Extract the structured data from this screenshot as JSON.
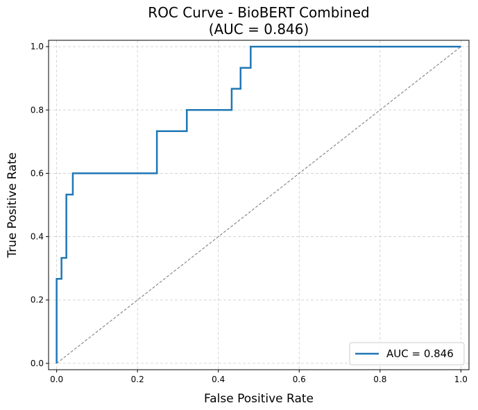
{
  "chart_data": {
    "type": "line",
    "title_line1": "ROC Curve - BioBERT Combined",
    "title_line2": "(AUC = 0.846)",
    "xlabel": "False Positive Rate",
    "ylabel": "True Positive Rate",
    "xlim": [
      -0.02,
      1.02
    ],
    "ylim": [
      -0.02,
      1.02
    ],
    "xticks": [
      0.0,
      0.2,
      0.4,
      0.6,
      0.8,
      1.0
    ],
    "xtick_labels": [
      "0.0",
      "0.2",
      "0.4",
      "0.6",
      "0.8",
      "1.0"
    ],
    "yticks": [
      0.0,
      0.2,
      0.4,
      0.6,
      0.8,
      1.0
    ],
    "ytick_labels": [
      "0.0",
      "0.2",
      "0.4",
      "0.6",
      "0.8",
      "1.0"
    ],
    "grid": true,
    "legend_position": "lower-right",
    "series": [
      {
        "name": "AUC = 0.846",
        "color": "#1f77b4",
        "style": "solid",
        "x": [
          0.0,
          0.0,
          0.012,
          0.012,
          0.024,
          0.024,
          0.03,
          0.03,
          0.04,
          0.04,
          0.248,
          0.248,
          0.322,
          0.322,
          0.433,
          0.433,
          0.455,
          0.455,
          0.48,
          0.48,
          1.0
        ],
        "y": [
          0.0,
          0.267,
          0.267,
          0.333,
          0.333,
          0.533,
          0.533,
          0.533,
          0.533,
          0.6,
          0.6,
          0.733,
          0.733,
          0.8,
          0.8,
          0.867,
          0.867,
          0.933,
          0.933,
          1.0,
          1.0
        ]
      }
    ],
    "reference_line": {
      "color": "#808080",
      "style": "dashed",
      "x": [
        0.0,
        1.0
      ],
      "y": [
        0.0,
        1.0
      ]
    }
  }
}
